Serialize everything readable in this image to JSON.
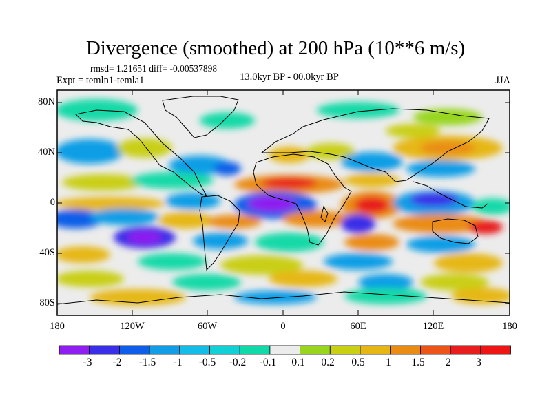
{
  "title": "Divergence (smoothed) at 200 hPa (10**6 m/s)",
  "stats": "rmsd= 1.21651 diff= -0.00537898",
  "experiment": "Expt = temln1-temla1",
  "period": "13.0kyr BP - 00.0kyr BP",
  "season": "JJA",
  "lat_labels": [
    "80N",
    "40N",
    "0",
    "40S",
    "80S"
  ],
  "lon_labels": [
    "180",
    "120W",
    "60W",
    "0",
    "60E",
    "120E",
    "180"
  ],
  "colorbar": {
    "labels": [
      "-3",
      "-2",
      "-1.5",
      "-1",
      "-0.5",
      "-0.2",
      "-0.1",
      "0.1",
      "0.2",
      "0.5",
      "1",
      "1.5",
      "2",
      "3"
    ],
    "colors": [
      "#8f1ff0",
      "#3a2ee8",
      "#0f5ee9",
      "#119ee6",
      "#13bde8",
      "#11d1d7",
      "#12d9a8",
      "#ececec",
      "#97d61c",
      "#c9cf13",
      "#e6b714",
      "#ea8c14",
      "#ec5418",
      "#e81d1d",
      "#ee1515"
    ]
  }
}
